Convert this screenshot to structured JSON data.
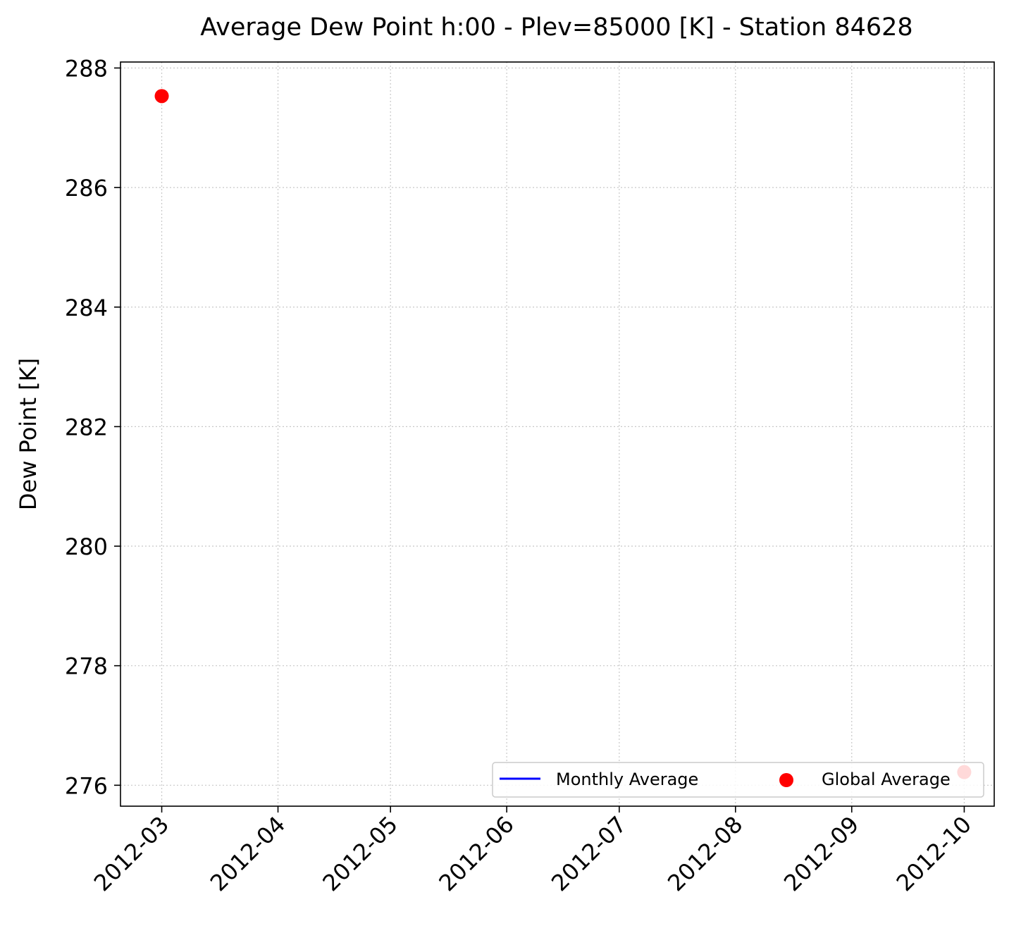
{
  "chart_data": {
    "type": "line",
    "title": "Average Dew Point h:00 - Plev=85000 [K] - Station 84628",
    "xlabel": "",
    "ylabel": "Dew Point [K]",
    "x_ticks": [
      "2012-03",
      "2012-04",
      "2012-05",
      "2012-06",
      "2012-07",
      "2012-08",
      "2012-09",
      "2012-10"
    ],
    "y_ticks": [
      276,
      278,
      280,
      282,
      284,
      286,
      288
    ],
    "xlim": [
      "2012-02-19",
      "2012-10-09"
    ],
    "ylim": [
      275.65,
      288.1
    ],
    "grid": true,
    "legend": {
      "position": "lower right",
      "columns": 2
    },
    "series": [
      {
        "name": "Monthly Average",
        "kind": "line",
        "color": "#0000ff",
        "points": []
      },
      {
        "name": "Global Average",
        "kind": "scatter",
        "color": "#ff0000",
        "points": [
          {
            "x": "2012-03-01",
            "y": 287.53
          },
          {
            "x": "2012-10-01",
            "y": 276.22
          }
        ]
      }
    ]
  }
}
